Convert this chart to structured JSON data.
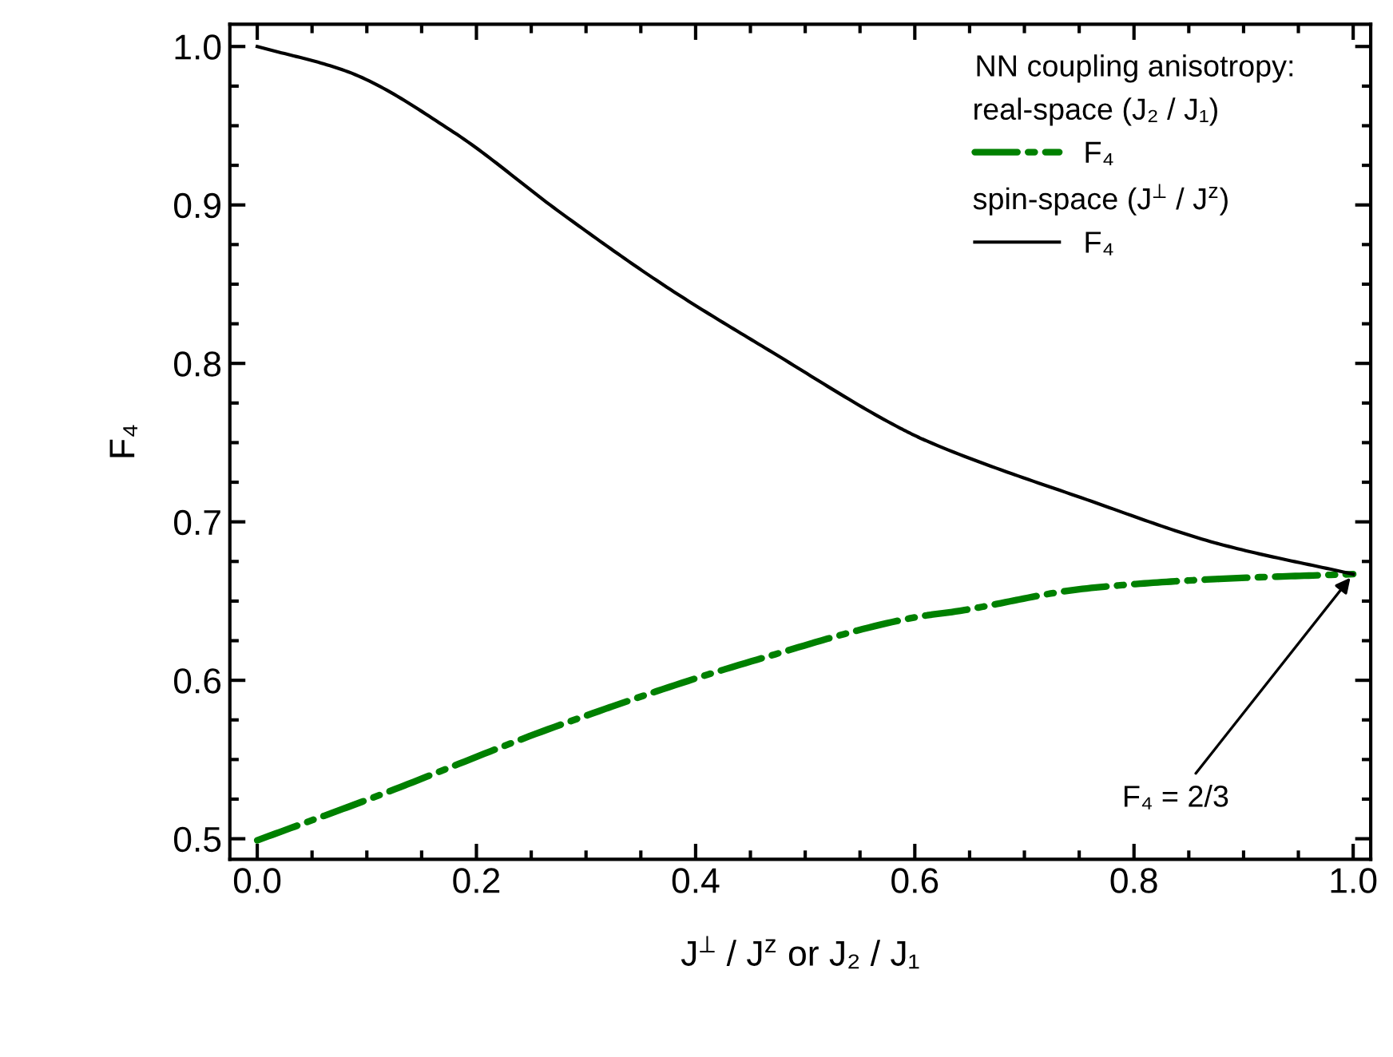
{
  "chart_data": {
    "type": "line",
    "xlabel": "J$^{⊥}$ / J$^{z}$ or J₂ / J₁",
    "ylabel": "F₄",
    "legend_title": "NN coupling anisotropy:",
    "series": [
      {
        "name": "F₄",
        "color": "#008000",
        "line_style": "dashdot",
        "x": [
          0,
          0.102,
          0.277,
          0.451,
          0.611,
          0.633,
          0.757,
          0.878,
          1.0
        ],
        "values": [
          0.499,
          0.525,
          0.572,
          0.612,
          0.641,
          0.643,
          0.658,
          0.664,
          0.667
        ]
      },
      {
        "name": "F₄",
        "color": "#000000",
        "line_style": "solid",
        "x": [
          0,
          0.083,
          0.179,
          0.277,
          0.374,
          0.47,
          0.587,
          0.611,
          0.757,
          0.878,
          1.0
        ],
        "values": [
          1.0,
          0.984,
          0.946,
          0.895,
          0.848,
          0.807,
          0.759,
          0.751,
          0.714,
          0.686,
          0.667
        ]
      }
    ],
    "annotations": [
      "real-space (J₂ / J₁)",
      "spin-space (J$^{⊥}$ / J$^{z}$)",
      {
        "text": "F₄ = 2/3",
        "x": 1.0,
        "y": 0.667
      }
    ],
    "xlim": [
      -0.025,
      1.016
    ],
    "ylim": [
      0.487,
      1.014
    ],
    "xticks": [
      {
        "value": 0,
        "label": "0.0"
      },
      0.2,
      0.4,
      0.6,
      0.8,
      {
        "value": 1,
        "label": "1.0"
      }
    ],
    "yticks": [
      0.5,
      0.6,
      0.7,
      0.8,
      0.9,
      {
        "value": 1,
        "label": "1.0"
      }
    ],
    "legend": "top right",
    "grid": false,
    "marker": "none"
  }
}
